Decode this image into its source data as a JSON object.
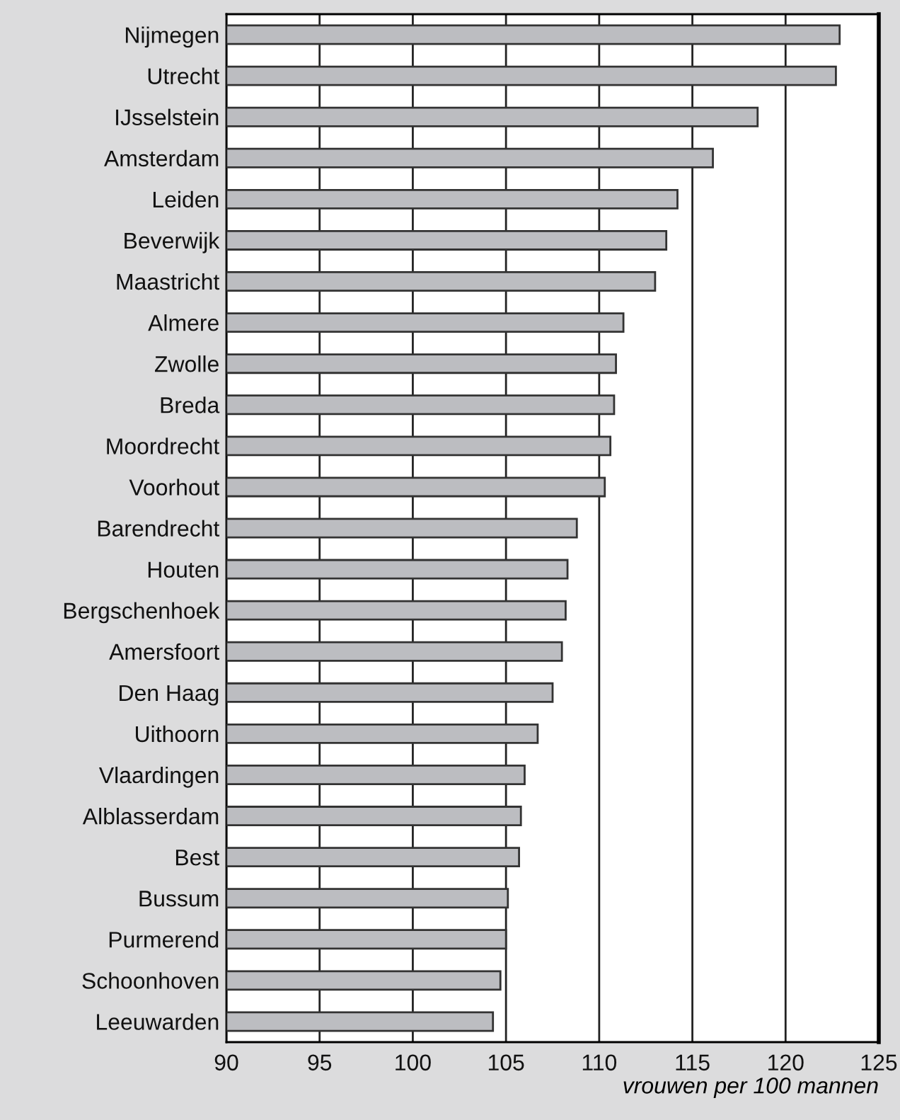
{
  "chart_data": {
    "type": "bar",
    "orientation": "horizontal",
    "xlabel": "vrouwen per 100 mannen",
    "categories": [
      "Nijmegen",
      "Utrecht",
      "IJsselstein",
      "Amsterdam",
      "Leiden",
      "Beverwijk",
      "Maastricht",
      "Almere",
      "Zwolle",
      "Breda",
      "Moordrecht",
      "Voorhout",
      "Barendrecht",
      "Houten",
      "Bergschenhoek",
      "Amersfoort",
      "Den Haag",
      "Uithoorn",
      "Vlaardingen",
      "Alblasserdam",
      "Best",
      "Bussum",
      "Purmerend",
      "Schoonhoven",
      "Leeuwarden"
    ],
    "values": [
      122.9,
      122.7,
      118.5,
      116.1,
      114.2,
      113.6,
      113.0,
      111.3,
      110.9,
      110.8,
      110.6,
      110.3,
      108.8,
      108.3,
      108.2,
      108.0,
      107.5,
      106.7,
      106.0,
      105.8,
      105.7,
      105.1,
      105.0,
      104.7,
      104.3
    ],
    "color": "#bcbdc1",
    "xlim": [
      90,
      125
    ],
    "xticks": [
      90,
      95,
      100,
      105,
      110,
      115,
      120,
      125
    ],
    "grid": "x"
  }
}
